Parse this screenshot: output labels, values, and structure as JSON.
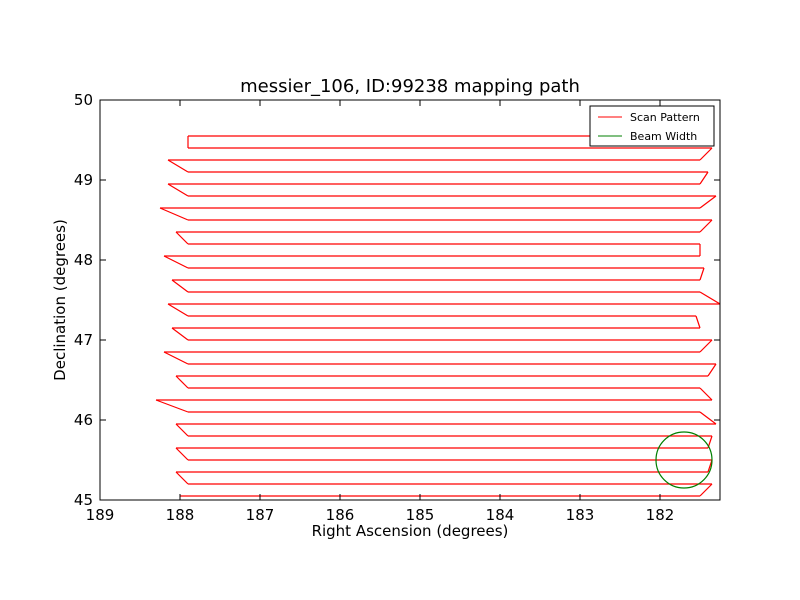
{
  "chart_data": {
    "type": "line",
    "title": "messier_106, ID:99238 mapping path",
    "xlabel": "Right Ascension (degrees)",
    "ylabel": "Declination (degrees)",
    "xlim": [
      189,
      181.25
    ],
    "ylim": [
      45,
      50
    ],
    "x_ticks": [
      189,
      188,
      187,
      186,
      185,
      184,
      183,
      182
    ],
    "y_ticks": [
      45,
      46,
      47,
      48,
      49,
      50
    ],
    "grid": false,
    "legend_position": "top-right",
    "legend": [
      "Scan Pattern",
      "Beam Width"
    ],
    "series": [
      {
        "name": "Scan Pattern",
        "color": "#ff0000",
        "rows": [
          {
            "dec": 45.05,
            "ra_start": 188.0,
            "ra_end": 181.5
          },
          {
            "dec": 45.2,
            "ra_start": 187.9,
            "ra_end": 181.35
          },
          {
            "dec": 45.35,
            "ra_start": 188.05,
            "ra_end": 181.4
          },
          {
            "dec": 45.5,
            "ra_start": 187.9,
            "ra_end": 181.35
          },
          {
            "dec": 45.65,
            "ra_start": 188.05,
            "ra_end": 181.4
          },
          {
            "dec": 45.8,
            "ra_start": 187.9,
            "ra_end": 181.35
          },
          {
            "dec": 45.95,
            "ra_start": 188.05,
            "ra_end": 181.3
          },
          {
            "dec": 46.1,
            "ra_start": 187.9,
            "ra_end": 181.5
          },
          {
            "dec": 46.25,
            "ra_start": 188.3,
            "ra_end": 181.35
          },
          {
            "dec": 46.4,
            "ra_start": 187.9,
            "ra_end": 181.5
          },
          {
            "dec": 46.55,
            "ra_start": 188.05,
            "ra_end": 181.4
          },
          {
            "dec": 46.7,
            "ra_start": 187.9,
            "ra_end": 181.3
          },
          {
            "dec": 46.85,
            "ra_start": 188.2,
            "ra_end": 181.5
          },
          {
            "dec": 47.0,
            "ra_start": 187.9,
            "ra_end": 181.35
          },
          {
            "dec": 47.15,
            "ra_start": 188.1,
            "ra_end": 181.5
          },
          {
            "dec": 47.3,
            "ra_start": 187.9,
            "ra_end": 181.55
          },
          {
            "dec": 47.45,
            "ra_start": 188.15,
            "ra_end": 181.25
          },
          {
            "dec": 47.6,
            "ra_start": 187.9,
            "ra_end": 181.5
          },
          {
            "dec": 47.75,
            "ra_start": 188.1,
            "ra_end": 181.5
          },
          {
            "dec": 47.9,
            "ra_start": 187.9,
            "ra_end": 181.45
          },
          {
            "dec": 48.05,
            "ra_start": 188.2,
            "ra_end": 181.5
          },
          {
            "dec": 48.2,
            "ra_start": 187.9,
            "ra_end": 181.5
          },
          {
            "dec": 48.35,
            "ra_start": 188.05,
            "ra_end": 181.5
          },
          {
            "dec": 48.5,
            "ra_start": 187.9,
            "ra_end": 181.35
          },
          {
            "dec": 48.65,
            "ra_start": 188.25,
            "ra_end": 181.5
          },
          {
            "dec": 48.8,
            "ra_start": 187.9,
            "ra_end": 181.3
          },
          {
            "dec": 48.95,
            "ra_start": 188.15,
            "ra_end": 181.5
          },
          {
            "dec": 49.1,
            "ra_start": 187.9,
            "ra_end": 181.4
          },
          {
            "dec": 49.25,
            "ra_start": 188.15,
            "ra_end": 181.5
          },
          {
            "dec": 49.4,
            "ra_start": 187.9,
            "ra_end": 181.35
          },
          {
            "dec": 49.55,
            "ra_start": 187.9,
            "ra_end": 181.35
          }
        ]
      },
      {
        "name": "Beam Width",
        "color": "#007f00",
        "shape": "circle",
        "center": [
          181.7,
          45.5
        ],
        "radius_dec": 0.35
      }
    ]
  }
}
